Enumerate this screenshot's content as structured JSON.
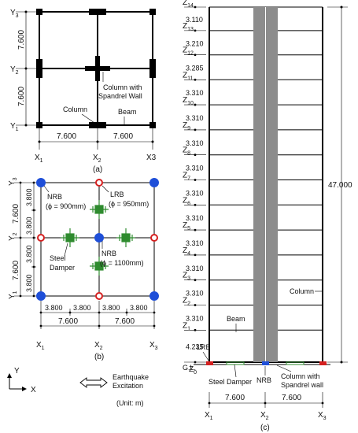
{
  "panel_a": {
    "caption": "(a)",
    "x_axes": [
      "X",
      "X",
      "X3"
    ],
    "x_subs": [
      "1",
      "2",
      ""
    ],
    "y_axes": [
      "Y",
      "Y",
      "Y"
    ],
    "y_subs": [
      "1",
      "2",
      "3"
    ],
    "spans_x": [
      "7.600",
      "7.600"
    ],
    "spans_y": [
      "7.600",
      "7.600"
    ],
    "labels": {
      "column": "Column",
      "beam": "Beam",
      "spandrel_1": "Column with",
      "spandrel_2": "Spandrel Wall"
    }
  },
  "panel_b": {
    "caption": "(b)",
    "x_axes": [
      "X",
      "X",
      "X"
    ],
    "x_subs": [
      "1",
      "2",
      "3"
    ],
    "y_axes": [
      "Y",
      "Y",
      "Y"
    ],
    "y_subs": [
      "1",
      "2",
      "3"
    ],
    "spans_x_half": [
      "3.800",
      "3.800",
      "3.800",
      "3.800"
    ],
    "spans_x": [
      "7.600",
      "7.600"
    ],
    "spans_y": [
      "7.600",
      "7.600"
    ],
    "spans_y_half": [
      "3.800",
      "3.800",
      "3.800",
      "3.800"
    ],
    "labels": {
      "nrb_900_1": "NRB",
      "nrb_900_2": "(ϕ = 900mm)",
      "lrb_1": "LRB",
      "lrb_2": "(ϕ = 950mm)",
      "nrb_1100_1": "NRB",
      "nrb_1100_2": "(ϕ = 1100mm)",
      "damper_1": "Steel",
      "damper_2": "Damper"
    },
    "colors": {
      "nrb": "#1f4fd8",
      "lrb": "#d42020",
      "damper": "#2e8b2e"
    }
  },
  "legend": {
    "axis_y": "Y",
    "axis_x": "X",
    "excitation_1": "Earthquake",
    "excitation_2": "Excitation",
    "unit": "(Unit: m)"
  },
  "panel_c": {
    "caption": "(c)",
    "floors": [
      {
        "z": "Z",
        "sub": "0"
      },
      {
        "z": "Z",
        "sub": "1"
      },
      {
        "z": "Z",
        "sub": "2"
      },
      {
        "z": "Z",
        "sub": "3"
      },
      {
        "z": "Z",
        "sub": "4"
      },
      {
        "z": "Z",
        "sub": "5"
      },
      {
        "z": "Z",
        "sub": "6"
      },
      {
        "z": "Z",
        "sub": "7"
      },
      {
        "z": "Z",
        "sub": "8"
      },
      {
        "z": "Z",
        "sub": "9"
      },
      {
        "z": "Z",
        "sub": "10"
      },
      {
        "z": "Z",
        "sub": "11"
      },
      {
        "z": "Z",
        "sub": "12"
      },
      {
        "z": "Z",
        "sub": "13"
      },
      {
        "z": "Z",
        "sub": "14"
      }
    ],
    "story_heights": [
      "4.235",
      "3.310",
      "3.310",
      "3.310",
      "3.310",
      "3.310",
      "3.310",
      "3.310",
      "3.310",
      "3.310",
      "3.310",
      "3.285",
      "3.210",
      "3.110"
    ],
    "total_height": "47.000",
    "gl": "G.L.",
    "x_axes": [
      "X",
      "X",
      "X"
    ],
    "x_subs": [
      "1",
      "2",
      "3"
    ],
    "spans_x": [
      "7.600",
      "7.600"
    ],
    "labels": {
      "column": "Column",
      "beam": "Beam",
      "lrb": "LRB",
      "steel_damper": "Steel Damper",
      "nrb": "NRB",
      "spandrel_1": "Column with",
      "spandrel_2": "Spandrel wall"
    },
    "colors": {
      "core": "#8c8c8c",
      "lrb": "#d42020",
      "nrb": "#1f4fd8",
      "damper": "#2e8b2e"
    }
  }
}
